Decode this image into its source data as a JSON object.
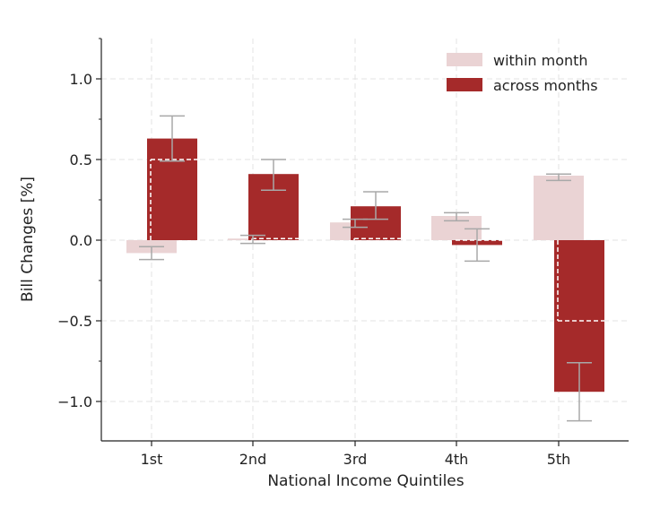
{
  "chart_data": {
    "type": "bar",
    "title": "",
    "xlabel": "National Income Quintiles",
    "ylabel": "Bill Changes [%]",
    "categories": [
      "1st",
      "2nd",
      "3rd",
      "4th",
      "5th"
    ],
    "ylim": [
      -1.25,
      1.25
    ],
    "yticks": [
      1.0,
      0.5,
      0.0,
      -0.5,
      -1.0
    ],
    "ytick_labels": [
      "1.0",
      "0.5",
      "0.0",
      "−0.5",
      "−1.0"
    ],
    "grid": true,
    "legend_position": "top-right",
    "series": [
      {
        "name": "within month",
        "color": "#ead3d4",
        "values": [
          -0.08,
          0.01,
          0.11,
          0.15,
          0.4
        ],
        "error_low": [
          -0.12,
          -0.02,
          0.08,
          0.12,
          0.37
        ],
        "error_high": [
          -0.04,
          0.03,
          0.13,
          0.17,
          0.41
        ]
      },
      {
        "name": "across months",
        "color": "#a52a2a",
        "values": [
          0.63,
          0.41,
          0.21,
          -0.03,
          -0.94
        ],
        "error_low": [
          0.49,
          0.31,
          0.13,
          -0.13,
          -1.12
        ],
        "error_high": [
          0.77,
          0.5,
          0.3,
          0.07,
          -0.76
        ]
      }
    ],
    "inner_markers": [
      0.5,
      0.01,
      0.01,
      0.0,
      -0.5
    ]
  }
}
